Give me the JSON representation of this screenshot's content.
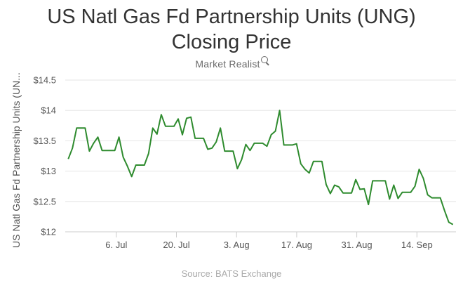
{
  "chart_data": {
    "type": "line",
    "title": [
      "US Natl Gas Fd Partnership Units (UNG)",
      "Closing Price"
    ],
    "brand": "Market Realist",
    "ylabel": "US Natl Gas Fd Partnership Units (UN...",
    "source": "Source: BATS Exchange",
    "ylim": [
      12,
      14.5
    ],
    "yticks": [
      12,
      12.5,
      13,
      13.5,
      14,
      14.5
    ],
    "ytick_labels": [
      "$12",
      "$12.5",
      "$13",
      "$13.5",
      "$14",
      "$14.5"
    ],
    "xlim": [
      -0.5,
      64.5
    ],
    "xticks": [
      {
        "x": 8,
        "label": "6. Jul"
      },
      {
        "x": 18,
        "label": "20. Jul"
      },
      {
        "x": 28,
        "label": "3. Aug"
      },
      {
        "x": 38,
        "label": "17. Aug"
      },
      {
        "x": 48,
        "label": "31. Aug"
      },
      {
        "x": 58,
        "label": "14. Sep"
      }
    ],
    "grid": "horizontal",
    "color": "#2e8b2e",
    "series": [
      {
        "values": [
          13.2,
          13.38,
          13.71,
          13.71,
          13.71,
          13.33,
          13.46,
          13.56,
          13.34,
          13.34,
          13.34,
          13.34,
          13.56,
          13.23,
          13.08,
          12.91,
          13.1,
          13.1,
          13.1,
          13.29,
          13.71,
          13.61,
          13.93,
          13.74,
          13.74,
          13.74,
          13.86,
          13.6,
          13.87,
          13.89,
          13.54,
          13.54,
          13.54,
          13.36,
          13.38,
          13.48,
          13.71,
          13.33,
          13.33,
          13.33,
          13.04,
          13.19,
          13.44,
          13.34,
          13.46,
          13.46,
          13.46,
          13.41,
          13.6,
          13.66,
          14.0,
          13.43,
          13.43,
          13.43,
          13.45,
          13.12,
          13.03,
          12.97,
          13.16,
          13.16,
          13.16,
          12.78,
          12.63,
          12.77,
          12.74,
          12.64,
          12.64,
          12.64,
          12.86,
          12.7,
          12.71,
          12.45,
          12.84,
          12.84,
          12.84,
          12.84,
          12.54,
          12.77,
          12.55,
          12.65,
          12.65,
          12.65,
          12.75,
          13.03,
          12.88,
          12.61,
          12.56,
          12.56,
          12.56,
          12.35,
          12.16,
          12.12
        ]
      }
    ]
  }
}
